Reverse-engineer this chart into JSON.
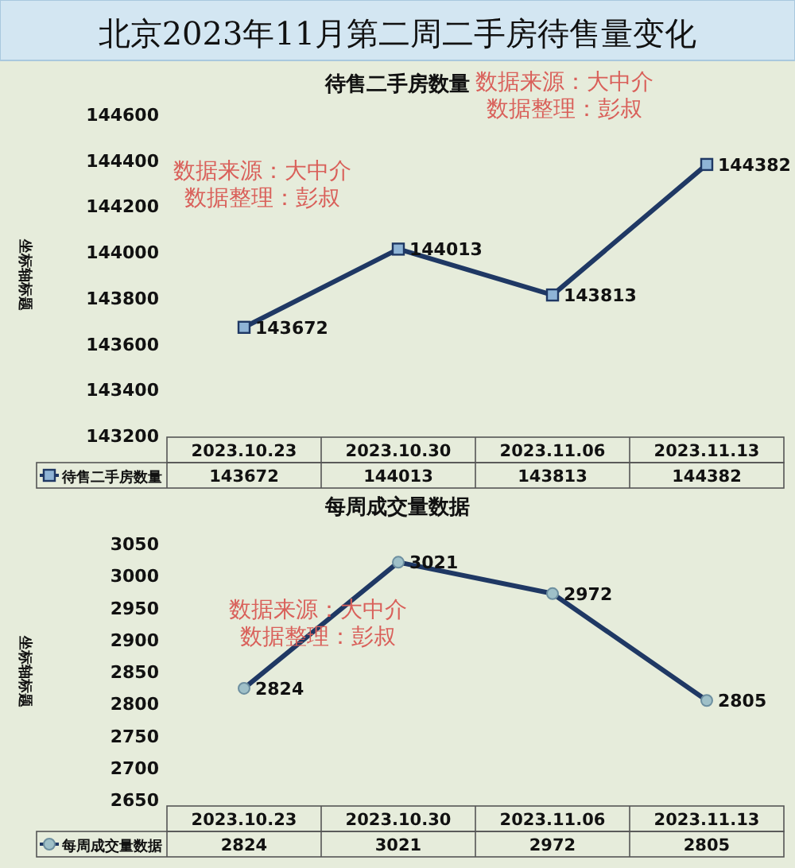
{
  "chart_data": [
    {
      "type": "line",
      "title": "北京2023年11月第二周二手房待售量变化",
      "subtitle": "待售二手房数量",
      "ylabel": "坐标轴标题",
      "categories": [
        "2023.10.23",
        "2023.10.30",
        "2023.11.06",
        "2023.11.13"
      ],
      "series": [
        {
          "name": "待售二手房数量",
          "color": "#1f3864",
          "values": [
            143672,
            144013,
            143813,
            144382
          ]
        }
      ],
      "ylim": [
        143200,
        144600
      ],
      "yticks": [
        143200,
        143400,
        143600,
        143800,
        144000,
        144200,
        144400,
        144600
      ],
      "marker": "square",
      "data_labels": true,
      "legend": "bottom",
      "annotations": [
        "数据来源：大中介",
        "数据整理：彭叔",
        "数据来源：大中介",
        "数据整理：彭叔",
        {
          "text": "143672",
          "x": "2023.10.23"
        },
        {
          "text": "144013",
          "x": "2023.10.30"
        },
        {
          "text": "143813",
          "x": "2023.11.06"
        },
        {
          "text": "144382",
          "x": "2023.11.13"
        }
      ]
    },
    {
      "type": "line",
      "title": "每周成交量数据",
      "ylabel": "坐标轴标题",
      "categories": [
        "2023.10.23",
        "2023.10.30",
        "2023.11.06",
        "2023.11.13"
      ],
      "series": [
        {
          "name": "每周成交量数据",
          "color": "#1f3864",
          "values": [
            2824,
            3021,
            2972,
            2805
          ]
        }
      ],
      "ylim": [
        2650,
        3050
      ],
      "yticks": [
        2650,
        2700,
        2750,
        2800,
        2850,
        2900,
        2950,
        3000,
        3050
      ],
      "marker": "circle",
      "data_labels": true,
      "legend": "bottom",
      "annotations": [
        "数据来源：大中介",
        "数据整理：彭叔",
        {
          "text": "2824",
          "x": "2023.10.23"
        },
        {
          "text": "3021",
          "x": "2023.10.30"
        },
        {
          "text": "2972",
          "x": "2023.11.06"
        },
        {
          "text": "2805",
          "x": "2023.11.13"
        }
      ]
    }
  ]
}
